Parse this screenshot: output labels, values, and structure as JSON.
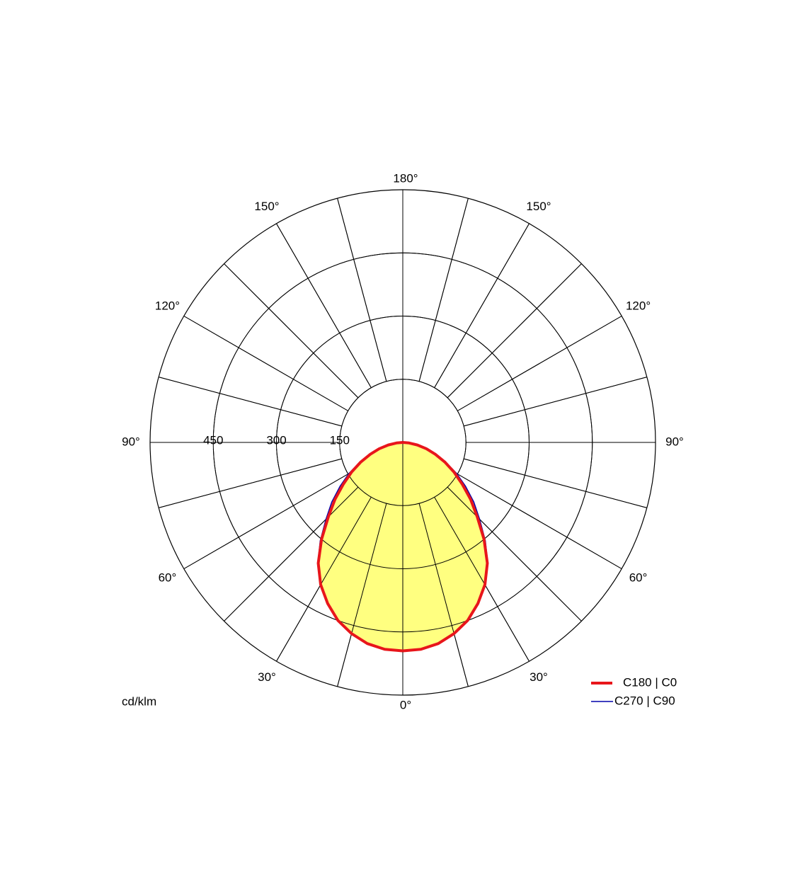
{
  "chart_data": {
    "type": "polar",
    "unit_label": "cd/klm",
    "rlim": [
      0,
      600
    ],
    "rticks": [
      150,
      300,
      450
    ],
    "angle_ticks": [
      {
        "value": 0,
        "label": "0°"
      },
      {
        "value": 30,
        "label": "30°"
      },
      {
        "value": 60,
        "label": "60°"
      },
      {
        "value": 90,
        "label": "90°"
      },
      {
        "value": 120,
        "label": "120°"
      },
      {
        "value": 150,
        "label": "150°"
      },
      {
        "value": 180,
        "label": "180°"
      }
    ],
    "fill_color": "#ffff80",
    "angles": [
      0,
      5,
      10,
      15,
      20,
      25,
      30,
      35,
      40,
      45,
      50,
      55,
      60,
      65,
      70,
      75,
      80,
      85,
      90
    ],
    "series": [
      {
        "name": "C270 | C90",
        "color": "#0000aa",
        "values": [
          495,
          493,
          485,
          470,
          450,
          422,
          390,
          352,
          305,
          258,
          220,
          182,
          148,
          114,
          84,
          58,
          35,
          15,
          0
        ]
      },
      {
        "name": "C180 | C0",
        "color": "#e8161b",
        "values": [
          495,
          493,
          485,
          470,
          450,
          422,
          390,
          350,
          300,
          250,
          210,
          172,
          140,
          110,
          82,
          58,
          35,
          15,
          0
        ]
      }
    ]
  }
}
